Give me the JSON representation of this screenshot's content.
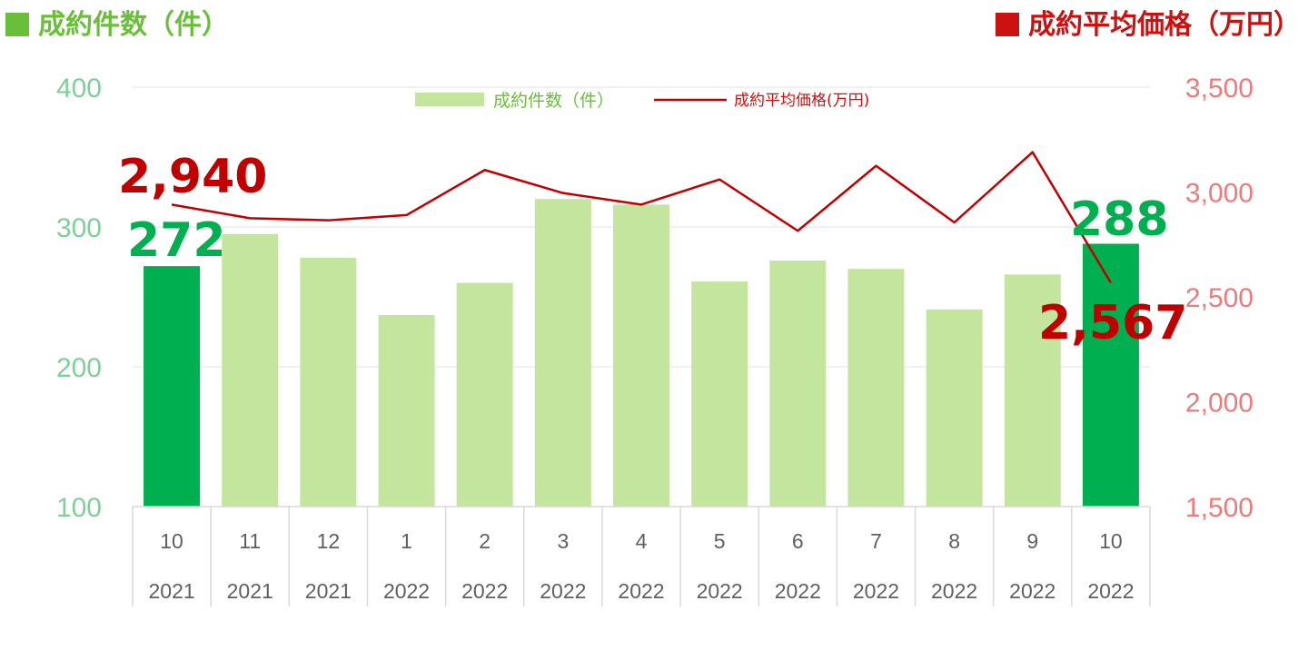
{
  "header": {
    "left_title": "成約件数（件）",
    "right_title": "成約平均価格（万円）"
  },
  "colors": {
    "bar_light": "#c4e59e",
    "bar_highlight": "#00b050",
    "line": "#c00000",
    "left_axis": "#7fcf9a",
    "right_axis": "#ec7b7b"
  },
  "chart_data": {
    "type": "bar",
    "categories": [
      [
        "10",
        "2021"
      ],
      [
        "11",
        "2021"
      ],
      [
        "12",
        "2021"
      ],
      [
        "1",
        "2022"
      ],
      [
        "2",
        "2022"
      ],
      [
        "3",
        "2022"
      ],
      [
        "4",
        "2022"
      ],
      [
        "5",
        "2022"
      ],
      [
        "6",
        "2022"
      ],
      [
        "7",
        "2022"
      ],
      [
        "8",
        "2022"
      ],
      [
        "9",
        "2022"
      ],
      [
        "10",
        "2022"
      ]
    ],
    "series": [
      {
        "name": "成約件数（件）",
        "type": "bar",
        "axis": "left",
        "values": [
          272,
          295,
          278,
          237,
          260,
          320,
          316,
          261,
          276,
          270,
          241,
          266,
          288
        ],
        "highlight_indices": [
          0,
          12
        ]
      },
      {
        "name": "成約平均価格(万円)",
        "type": "line",
        "axis": "right",
        "values": [
          2940,
          2875,
          2865,
          2890,
          3105,
          2995,
          2940,
          3060,
          2815,
          3125,
          2855,
          3190,
          2567
        ]
      }
    ],
    "left_axis": {
      "ylim": [
        100,
        400
      ],
      "ticks": [
        "100",
        "200",
        "300",
        "400"
      ]
    },
    "right_axis": {
      "ylim": [
        1500,
        3500
      ],
      "ticks": [
        "1,500",
        "2,000",
        "2,500",
        "3,000",
        "3,500"
      ]
    },
    "legend": "top-center",
    "grid": true,
    "callouts": {
      "bar_first": "272",
      "bar_last": "288",
      "line_first": "2,940",
      "line_last": "2,567"
    }
  }
}
